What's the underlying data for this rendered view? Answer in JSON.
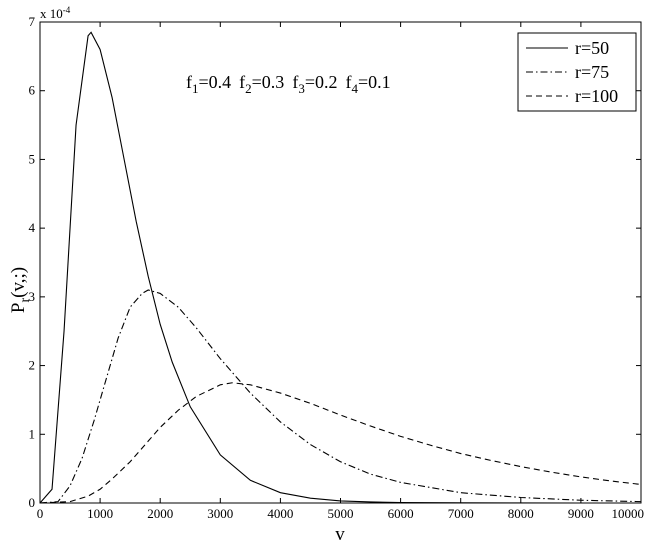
{
  "chart_data": {
    "type": "line",
    "title": "",
    "xlabel": "v",
    "ylabel": "P_r(v,;)",
    "y_exponent_label": "x 10",
    "y_exponent_power": "-4",
    "xlim": [
      0,
      10000
    ],
    "ylim": [
      0,
      7
    ],
    "x_ticks": [
      0,
      1000,
      2000,
      3000,
      4000,
      5000,
      6000,
      7000,
      8000,
      9000,
      10000
    ],
    "x_tick_labels": [
      "0",
      "1000",
      "2000",
      "3000",
      "4000",
      "5000",
      "6000",
      "7000",
      "8000",
      "9000",
      "10000"
    ],
    "y_ticks": [
      0,
      1,
      2,
      3,
      4,
      5,
      6,
      7
    ],
    "y_tick_labels": [
      "0",
      "1",
      "2",
      "3",
      "4",
      "5",
      "6",
      "7"
    ],
    "grid": false,
    "legend_position": "top-right",
    "annotation": {
      "parts": [
        {
          "base": "f",
          "sub": "1",
          "value": "=0.4"
        },
        {
          "base": "f",
          "sub": "2",
          "value": "=0.3"
        },
        {
          "base": "f",
          "sub": "3",
          "value": "=0.2"
        },
        {
          "base": "f",
          "sub": "4",
          "value": "=0.1"
        }
      ]
    },
    "series": [
      {
        "name": "r=50",
        "line_style": "solid",
        "x": [
          0,
          200,
          400,
          600,
          800,
          850,
          1000,
          1200,
          1400,
          1600,
          1800,
          2000,
          2200,
          2500,
          3000,
          3500,
          4000,
          4500,
          5000,
          5500,
          6000,
          7000,
          8000,
          9000,
          10000
        ],
        "y": [
          0,
          0.2,
          2.5,
          5.5,
          6.8,
          6.85,
          6.6,
          5.9,
          5.0,
          4.1,
          3.3,
          2.6,
          2.05,
          1.4,
          0.7,
          0.33,
          0.15,
          0.07,
          0.03,
          0.015,
          0.007,
          0.002,
          0.0005,
          0.0001,
          0
        ]
      },
      {
        "name": "r=75",
        "line_style": "dashdot",
        "x": [
          0,
          300,
          500,
          700,
          900,
          1100,
          1300,
          1500,
          1700,
          1800,
          2000,
          2300,
          2600,
          3000,
          3500,
          4000,
          4500,
          5000,
          5500,
          6000,
          7000,
          8000,
          9000,
          10000
        ],
        "y": [
          0,
          0.02,
          0.25,
          0.65,
          1.2,
          1.8,
          2.4,
          2.85,
          3.05,
          3.1,
          3.05,
          2.85,
          2.55,
          2.1,
          1.6,
          1.18,
          0.85,
          0.6,
          0.42,
          0.3,
          0.15,
          0.08,
          0.04,
          0.02
        ]
      },
      {
        "name": "r=100",
        "line_style": "dashed",
        "x": [
          0,
          500,
          800,
          1000,
          1200,
          1500,
          1800,
          2000,
          2300,
          2600,
          3000,
          3200,
          3500,
          4000,
          4500,
          5000,
          5500,
          6000,
          6500,
          7000,
          7500,
          8000,
          8500,
          9000,
          9500,
          10000
        ],
        "y": [
          0,
          0.02,
          0.1,
          0.2,
          0.35,
          0.6,
          0.9,
          1.1,
          1.35,
          1.55,
          1.72,
          1.75,
          1.72,
          1.6,
          1.45,
          1.28,
          1.12,
          0.97,
          0.84,
          0.72,
          0.62,
          0.53,
          0.45,
          0.38,
          0.32,
          0.27
        ]
      }
    ]
  }
}
